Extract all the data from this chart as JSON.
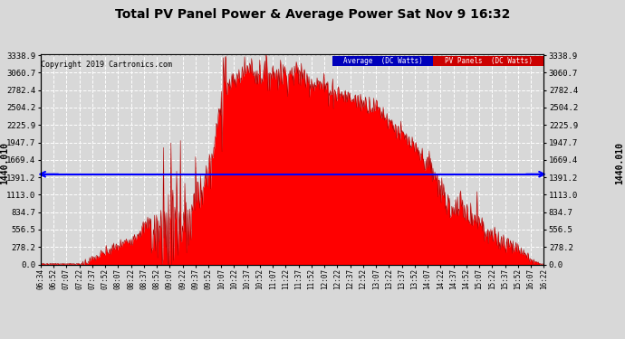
{
  "title": "Total PV Panel Power & Average Power Sat Nov 9 16:32",
  "copyright": "Copyright 2019 Cartronics.com",
  "y_side_label": "1440.010",
  "average_value": 1440.01,
  "y_max": 3338.9,
  "y_ticks": [
    0.0,
    278.2,
    556.5,
    834.7,
    1113.0,
    1391.2,
    1669.4,
    1947.7,
    2225.9,
    2504.2,
    2782.4,
    3060.7,
    3338.9
  ],
  "bg_color": "#d8d8d8",
  "plot_bg_color": "#d8d8d8",
  "fill_color": "#ff0000",
  "avg_line_color": "#0000ff",
  "grid_color": "#ffffff",
  "legend_avg_bg": "#0000bb",
  "legend_pv_bg": "#cc0000",
  "x_tick_labels": [
    "06:34",
    "06:52",
    "07:07",
    "07:22",
    "07:37",
    "07:52",
    "08:07",
    "08:22",
    "08:37",
    "08:52",
    "09:07",
    "09:22",
    "09:37",
    "09:52",
    "10:07",
    "10:22",
    "10:37",
    "10:52",
    "11:07",
    "11:22",
    "11:37",
    "11:52",
    "12:07",
    "12:22",
    "12:37",
    "12:52",
    "13:07",
    "13:22",
    "13:37",
    "13:52",
    "14:07",
    "14:22",
    "14:37",
    "14:52",
    "15:07",
    "15:22",
    "15:37",
    "15:52",
    "16:07",
    "16:22"
  ]
}
